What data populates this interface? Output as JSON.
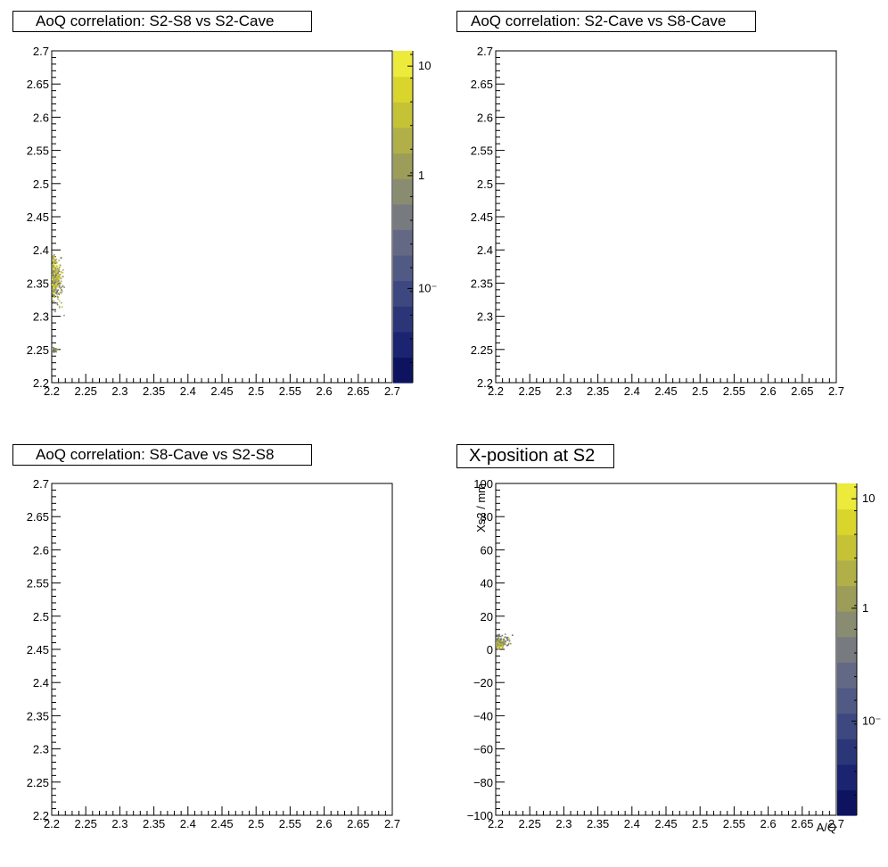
{
  "chart_data": [
    {
      "type": "heatmap",
      "title": "AoQ correlation: S2-S8 vs S2-Cave",
      "xlim": [
        2.2,
        2.7
      ],
      "ylim": [
        2.2,
        2.7
      ],
      "xticks": [
        "2.2",
        "2.25",
        "2.3",
        "2.35",
        "2.4",
        "2.45",
        "2.5",
        "2.55",
        "2.6",
        "2.65",
        "2.7"
      ],
      "yticks": [
        "2.2",
        "2.25",
        "2.3",
        "2.35",
        "2.4",
        "2.45",
        "2.5",
        "2.55",
        "2.6",
        "2.65",
        "2.7"
      ],
      "log_z": true,
      "zticks": [
        "10",
        "1",
        "10⁻"
      ],
      "palette": [
        "#0e1360",
        "#1b2470",
        "#2b3678",
        "#3d4880",
        "#505a84",
        "#636985",
        "#777b80",
        "#8a8c72",
        "#9d9d5a",
        "#b1af48",
        "#c6c236",
        "#dad52c",
        "#ecea3a"
      ],
      "clusters": [
        {
          "x": [
            2.2,
            2.215
          ],
          "y": [
            2.32,
            2.4
          ],
          "density": "high"
        },
        {
          "x": [
            2.2,
            2.225
          ],
          "y": [
            2.29,
            2.42
          ],
          "density": "low"
        },
        {
          "x": [
            2.2,
            2.21
          ],
          "y": [
            2.245,
            2.255
          ],
          "density": "low"
        }
      ]
    },
    {
      "type": "heatmap",
      "title": "AoQ correlation: S2-Cave vs S8-Cave",
      "xlim": [
        2.2,
        2.7
      ],
      "ylim": [
        2.2,
        2.7
      ],
      "xticks": [
        "2.2",
        "2.25",
        "2.3",
        "2.35",
        "2.4",
        "2.45",
        "2.5",
        "2.55",
        "2.6",
        "2.65",
        "2.7"
      ],
      "yticks": [
        "2.2",
        "2.25",
        "2.3",
        "2.35",
        "2.4",
        "2.45",
        "2.5",
        "2.55",
        "2.6",
        "2.65",
        "2.7"
      ]
    },
    {
      "type": "heatmap",
      "title": "AoQ correlation: S8-Cave vs S2-S8",
      "xlim": [
        2.2,
        2.7
      ],
      "ylim": [
        2.2,
        2.7
      ],
      "xticks": [
        "2.2",
        "2.25",
        "2.3",
        "2.35",
        "2.4",
        "2.45",
        "2.5",
        "2.55",
        "2.6",
        "2.65",
        "2.7"
      ],
      "yticks": [
        "2.2",
        "2.25",
        "2.3",
        "2.35",
        "2.4",
        "2.45",
        "2.5",
        "2.55",
        "2.6",
        "2.65",
        "2.7"
      ]
    },
    {
      "type": "heatmap",
      "title": "X-position at S2",
      "xlabel": "A/Q",
      "ylabel": "Xs2 / mm",
      "xlim": [
        2.2,
        2.7
      ],
      "ylim": [
        -100,
        100
      ],
      "xticks": [
        "2.2",
        "2.25",
        "2.3",
        "2.35",
        "2.4",
        "2.45",
        "2.5",
        "2.55",
        "2.6",
        "2.65",
        "2.7"
      ],
      "yticks": [
        "−100",
        "−80",
        "−60",
        "−40",
        "−20",
        "0",
        "20",
        "40",
        "60",
        "80",
        "100"
      ],
      "log_z": true,
      "zticks": [
        "10",
        "1",
        "10⁻"
      ],
      "palette": [
        "#0e1360",
        "#1b2470",
        "#2b3678",
        "#3d4880",
        "#505a84",
        "#636985",
        "#777b80",
        "#8a8c72",
        "#9d9d5a",
        "#b1af48",
        "#c6c236",
        "#dad52c",
        "#ecea3a"
      ],
      "clusters": [
        {
          "x": [
            2.2,
            2.215
          ],
          "y": [
            1,
            6
          ],
          "density": "high"
        },
        {
          "x": [
            2.2,
            2.228
          ],
          "y": [
            0,
            11
          ],
          "density": "low"
        }
      ]
    }
  ]
}
